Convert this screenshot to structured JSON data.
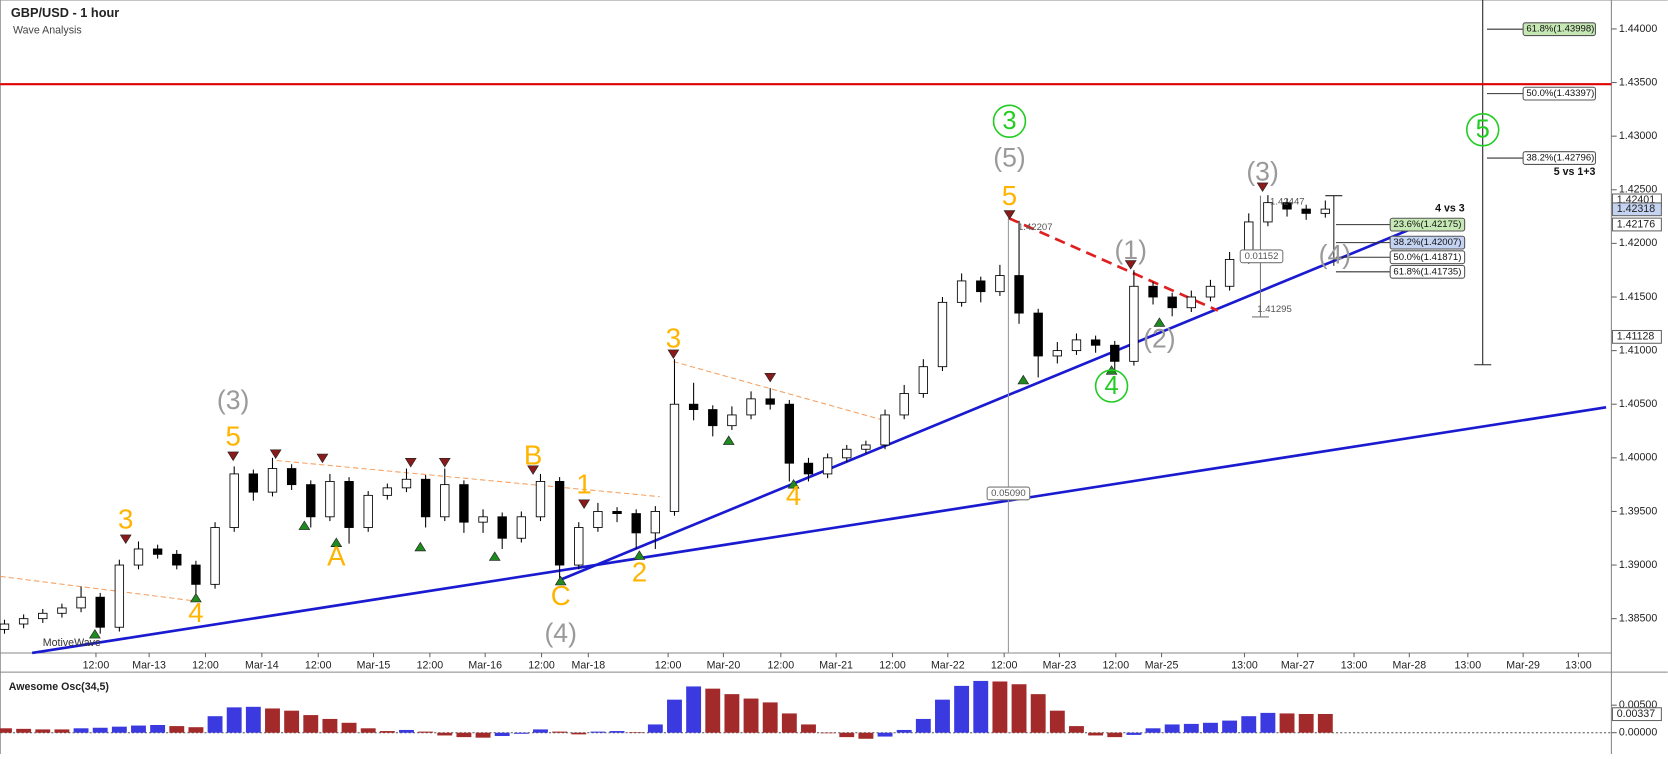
{
  "chart_data": [
    {
      "type": "candlestick",
      "title": "GBP/USD - 1 hour",
      "subtitle": "Wave Analysis",
      "watermark": "MotiveWave",
      "categories": [
        "12:00",
        "Mar-13",
        "12:00",
        "Mar-14",
        "12:00",
        "Mar-15",
        "12:00",
        "Mar-16",
        "12:00",
        "Mar-18",
        "12:00",
        "Mar-20",
        "12:00",
        "Mar-21",
        "12:00",
        "Mar-22",
        "12:00",
        "Mar-23",
        "12:00",
        "Mar-25",
        "13:00",
        "Mar-27",
        "13:00",
        "Mar-28",
        "13:00",
        "Mar-29",
        "13:00"
      ],
      "ohlc": [
        [
          1.384,
          1.3849,
          1.3836,
          1.3845
        ],
        [
          1.3845,
          1.3854,
          1.3841,
          1.385
        ],
        [
          1.385,
          1.3859,
          1.3846,
          1.3855
        ],
        [
          1.3855,
          1.3864,
          1.3851,
          1.386
        ],
        [
          1.386,
          1.388,
          1.3856,
          1.387
        ],
        [
          1.387,
          1.3874,
          1.3836,
          1.3842
        ],
        [
          1.3842,
          1.3905,
          1.3838,
          1.39
        ],
        [
          1.39,
          1.3922,
          1.3896,
          1.3915
        ],
        [
          1.3915,
          1.3919,
          1.3906,
          1.391
        ],
        [
          1.391,
          1.3914,
          1.3896,
          1.39
        ],
        [
          1.39,
          1.3904,
          1.3872,
          1.3882
        ],
        [
          1.3882,
          1.394,
          1.3878,
          1.3935
        ],
        [
          1.3935,
          1.3992,
          1.3931,
          1.3985
        ],
        [
          1.3985,
          1.3989,
          1.396,
          1.3968
        ],
        [
          1.3968,
          1.4,
          1.3964,
          1.399
        ],
        [
          1.399,
          1.3994,
          1.397,
          1.3975
        ],
        [
          1.3975,
          1.3979,
          1.3935,
          1.3945
        ],
        [
          1.3945,
          1.3985,
          1.3941,
          1.3978
        ],
        [
          1.3978,
          1.3982,
          1.392,
          1.3935
        ],
        [
          1.3935,
          1.3969,
          1.3931,
          1.3965
        ],
        [
          1.3965,
          1.3976,
          1.3961,
          1.3972
        ],
        [
          1.3972,
          1.399,
          1.3968,
          1.398
        ],
        [
          1.398,
          1.3984,
          1.3935,
          1.3945
        ],
        [
          1.3945,
          1.399,
          1.3941,
          1.3975
        ],
        [
          1.3975,
          1.3979,
          1.393,
          1.394
        ],
        [
          1.394,
          1.3952,
          1.393,
          1.3945
        ],
        [
          1.3945,
          1.3949,
          1.3915,
          1.3925
        ],
        [
          1.3925,
          1.395,
          1.3921,
          1.3945
        ],
        [
          1.3945,
          1.3985,
          1.3941,
          1.3978
        ],
        [
          1.3978,
          1.3982,
          1.3888,
          1.39
        ],
        [
          1.39,
          1.394,
          1.3896,
          1.3935
        ],
        [
          1.3935,
          1.3958,
          1.3931,
          1.395
        ],
        [
          1.395,
          1.3954,
          1.394,
          1.3948
        ],
        [
          1.3948,
          1.3952,
          1.3915,
          1.393
        ],
        [
          1.393,
          1.3955,
          1.3915,
          1.395
        ],
        [
          1.395,
          1.4092,
          1.3946,
          1.405
        ],
        [
          1.405,
          1.407,
          1.4035,
          1.4045
        ],
        [
          1.4045,
          1.4049,
          1.402,
          1.403
        ],
        [
          1.403,
          1.4048,
          1.4026,
          1.404
        ],
        [
          1.404,
          1.4062,
          1.4036,
          1.4055
        ],
        [
          1.4055,
          1.4065,
          1.4045,
          1.405
        ],
        [
          1.405,
          1.4054,
          1.3978,
          1.3995
        ],
        [
          1.3995,
          1.4,
          1.3978,
          1.3985
        ],
        [
          1.3985,
          1.4004,
          1.3981,
          1.4
        ],
        [
          1.4,
          1.4012,
          1.3996,
          1.4008
        ],
        [
          1.4008,
          1.4016,
          1.4004,
          1.4012
        ],
        [
          1.4012,
          1.4045,
          1.4008,
          1.404
        ],
        [
          1.404,
          1.4068,
          1.4036,
          1.406
        ],
        [
          1.406,
          1.4092,
          1.4056,
          1.4085
        ],
        [
          1.4085,
          1.415,
          1.4081,
          1.4145
        ],
        [
          1.4145,
          1.4172,
          1.4141,
          1.4165
        ],
        [
          1.4165,
          1.4169,
          1.4145,
          1.4155
        ],
        [
          1.4155,
          1.418,
          1.4151,
          1.417
        ],
        [
          1.417,
          1.4221,
          1.4125,
          1.4135
        ],
        [
          1.4135,
          1.4139,
          1.4075,
          1.4095
        ],
        [
          1.4095,
          1.4108,
          1.4088,
          1.41
        ],
        [
          1.41,
          1.4116,
          1.4096,
          1.411
        ],
        [
          1.411,
          1.4114,
          1.4098,
          1.4105
        ],
        [
          1.4105,
          1.4109,
          1.408,
          1.409
        ],
        [
          1.409,
          1.4175,
          1.4086,
          1.416
        ],
        [
          1.416,
          1.4164,
          1.4143,
          1.415
        ],
        [
          1.415,
          1.4154,
          1.4132,
          1.414
        ],
        [
          1.414,
          1.4156,
          1.4136,
          1.415
        ],
        [
          1.415,
          1.4166,
          1.4146,
          1.416
        ],
        [
          1.416,
          1.4192,
          1.4156,
          1.4185
        ],
        [
          1.4185,
          1.4228,
          1.4181,
          1.422
        ],
        [
          1.422,
          1.4245,
          1.4216,
          1.4238
        ],
        [
          1.4238,
          1.4242,
          1.4225,
          1.4232
        ],
        [
          1.4232,
          1.4236,
          1.4222,
          1.4228
        ],
        [
          1.4228,
          1.424,
          1.4224,
          1.4232
        ]
      ],
      "up_color": "#ffffff",
      "down_color": "#000000",
      "ylim": [
        1.3818,
        1.4427
      ],
      "yticks": [
        {
          "value": 1.385,
          "label": "1.38500"
        },
        {
          "value": 1.39,
          "label": "1.39000"
        },
        {
          "value": 1.395,
          "label": "1.39500"
        },
        {
          "value": 1.4,
          "label": "1.40000"
        },
        {
          "value": 1.405,
          "label": "1.40500"
        },
        {
          "value": 1.41,
          "label": "1.41000"
        },
        {
          "value": 1.415,
          "label": "1.41500"
        },
        {
          "value": 1.42,
          "label": "1.42000"
        },
        {
          "value": 1.425,
          "label": "1.42500"
        },
        {
          "value": 1.43,
          "label": "1.43000"
        },
        {
          "value": 1.435,
          "label": "1.43500"
        },
        {
          "value": 1.44,
          "label": "1.44000"
        }
      ],
      "hline": {
        "value": 1.43485,
        "color": "#e00000"
      },
      "price_tags": [
        {
          "value": 1.42401,
          "label": "1.42401",
          "color": "#ffffff"
        },
        {
          "value": 1.42318,
          "label": "1.42318",
          "color": "#c5d3f2"
        },
        {
          "value": 1.42176,
          "label": "1.42176",
          "color": "#ffffff"
        },
        {
          "value": 1.41128,
          "label": "1.41128",
          "color": "#ffffff"
        }
      ],
      "fib_groups": [
        {
          "title": "5 vs 1+3",
          "levels": [
            {
              "value": 1.43998,
              "label": "61.8%(1.43998)",
              "color": "#c6e8b5"
            },
            {
              "value": 1.43397,
              "label": "50.0%(1.43397)",
              "color": "#ffffff"
            },
            {
              "value": 1.42796,
              "label": "38.2%(1.42796)",
              "color": "#ffffff"
            }
          ]
        },
        {
          "title": "4 vs 3",
          "levels": [
            {
              "value": 1.42175,
              "label": "23.6%(1.42175)",
              "color": "#c6e8b5"
            },
            {
              "value": 1.42007,
              "label": "38.2%(1.42007)",
              "color": "#c5d3f2"
            },
            {
              "value": 1.41871,
              "label": "50.0%(1.41871)",
              "color": "#ffffff"
            },
            {
              "value": 1.41735,
              "label": "61.8%(1.41735)",
              "color": "#ffffff"
            }
          ]
        }
      ],
      "measure_labels": [
        "1.42207",
        "0.05090",
        "1.42447",
        "0.01152",
        "1.41295"
      ],
      "wave_labels_minor": [
        "3",
        "4",
        "5",
        "A",
        "B",
        "C",
        "1",
        "2",
        "3",
        "4",
        "5"
      ],
      "minor_color": "#ffb400",
      "wave_labels_intermediate": [
        "(3)",
        "(4)",
        "(5)",
        "(1)",
        "(2)",
        "(3)",
        "(4)"
      ],
      "intermediate_color": "#9a9a9a",
      "wave_labels_primary": [
        "3",
        "4",
        "5"
      ],
      "primary_color": "#22cc22"
    },
    {
      "type": "histogram",
      "title": "Awesome Osc(34,5)",
      "values": [
        0.0008,
        0.0007,
        0.0006,
        0.0006,
        0.0008,
        0.0009,
        0.0011,
        0.0013,
        0.0014,
        0.0012,
        0.001,
        0.003,
        0.0046,
        0.0047,
        0.0044,
        0.004,
        0.0032,
        0.0025,
        0.0018,
        0.0008,
        0.0003,
        0.0005,
        0.0002,
        -0.0005,
        -0.0008,
        -0.0009,
        -0.0006,
        -0.0002,
        0.0006,
        0.0002,
        -0.0003,
        0.0002,
        0.0003,
        0.0001,
        0.0015,
        0.006,
        0.0084,
        0.008,
        0.007,
        0.0062,
        0.0055,
        0.0035,
        0.0015,
        0.0,
        -0.0008,
        -0.0011,
        -0.0007,
        0.0005,
        0.0025,
        0.006,
        0.0085,
        0.0094,
        0.0093,
        0.0088,
        0.007,
        0.004,
        0.0012,
        -0.0005,
        -0.0008,
        -0.0004,
        0.0008,
        0.0015,
        0.0016,
        0.0018,
        0.0022,
        0.003,
        0.0036,
        0.0035,
        0.0034,
        0.0034
      ],
      "up_color": "#3a3ae0",
      "down_color": "#a32a2a",
      "ylim": [
        -0.0029,
        0.011
      ],
      "yticks": [
        {
          "value": 0.005,
          "label": "0.00500"
        },
        {
          "value": 0,
          "label": "0.00000"
        }
      ],
      "price_tag": {
        "value": 0.00337,
        "label": "0.00337"
      }
    }
  ]
}
